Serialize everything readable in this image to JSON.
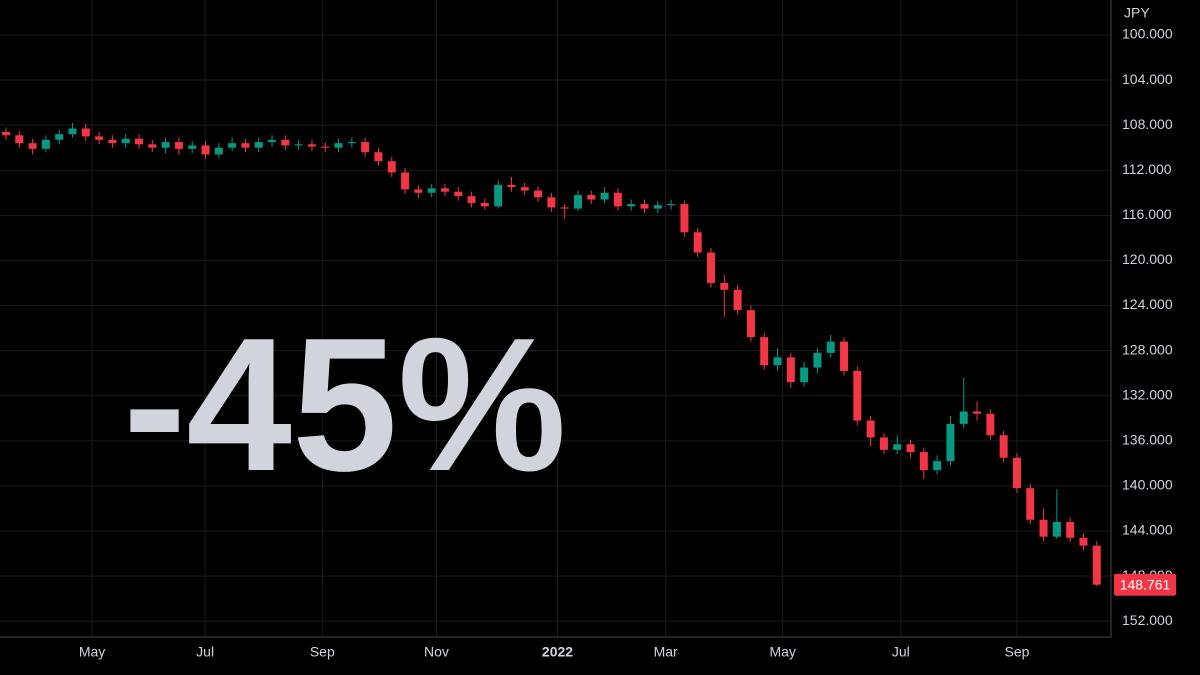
{
  "chart_data": {
    "type": "candlestick",
    "y_unit": "JPY",
    "annotation": "-45%",
    "annotation_color": "#f7525f",
    "rise_color": "#f23645",
    "fall_color": "#089981",
    "grid": true,
    "x": [
      0,
      1,
      2,
      3,
      4,
      5,
      6,
      7,
      8,
      9,
      10,
      11,
      12,
      13,
      14,
      15,
      16,
      17,
      18,
      19,
      20,
      21,
      22,
      23,
      24,
      25,
      26,
      27,
      28,
      29,
      30,
      31,
      32,
      33,
      34,
      35,
      36,
      37,
      38,
      39,
      40,
      41,
      42,
      43,
      44,
      45,
      46,
      47,
      48,
      49,
      50,
      51,
      52,
      53,
      54,
      55,
      56,
      57,
      58,
      59,
      60,
      61,
      62,
      63,
      64,
      65,
      66,
      67,
      68,
      69,
      70,
      71,
      72,
      73,
      74,
      75,
      76,
      77,
      78,
      79,
      80,
      81,
      82
    ],
    "open": [
      108.6,
      108.9,
      109.6,
      110.1,
      109.3,
      108.8,
      108.3,
      109.0,
      109.3,
      109.6,
      109.2,
      109.7,
      110.0,
      109.5,
      110.1,
      109.8,
      110.6,
      110.0,
      109.6,
      110.0,
      109.5,
      109.3,
      109.8,
      109.7,
      109.9,
      110.0,
      109.6,
      109.5,
      110.4,
      111.2,
      112.2,
      113.7,
      114.0,
      113.6,
      113.9,
      114.3,
      114.9,
      115.2,
      113.3,
      113.5,
      113.8,
      114.4,
      115.3,
      115.4,
      114.2,
      114.6,
      114.0,
      115.2,
      115.0,
      115.4,
      115.1,
      115.0,
      117.5,
      119.3,
      122.0,
      122.6,
      124.4,
      126.8,
      129.3,
      128.6,
      130.8,
      129.5,
      128.2,
      127.2,
      129.8,
      134.2,
      135.7,
      136.8,
      136.3,
      137.0,
      138.6,
      137.8,
      134.5,
      133.4,
      133.6,
      135.5,
      137.5,
      140.2,
      143.0,
      144.5,
      143.2,
      144.6,
      145.3
    ],
    "high": [
      109.3,
      110.0,
      110.6,
      110.4,
      109.7,
      109.1,
      109.4,
      109.7,
      110.0,
      110.0,
      110.1,
      110.4,
      110.5,
      110.6,
      110.5,
      111.0,
      110.9,
      110.3,
      110.4,
      110.4,
      109.9,
      110.2,
      110.2,
      110.3,
      110.4,
      110.4,
      110.0,
      110.8,
      111.6,
      112.6,
      114.1,
      114.5,
      114.4,
      114.3,
      114.7,
      115.3,
      115.5,
      115.4,
      113.9,
      114.2,
      114.8,
      115.7,
      116.3,
      115.6,
      115.0,
      114.9,
      115.6,
      115.6,
      115.8,
      115.8,
      115.5,
      117.9,
      119.7,
      122.4,
      125.0,
      124.8,
      127.2,
      129.7,
      129.8,
      131.3,
      131.2,
      130.0,
      128.6,
      130.2,
      134.6,
      136.5,
      137.2,
      137.2,
      137.5,
      139.4,
      139.0,
      138.2,
      134.9,
      134.2,
      135.9,
      137.9,
      140.6,
      143.4,
      144.9,
      144.7,
      145.0,
      145.7,
      148.9
    ],
    "low": [
      108.2,
      108.5,
      109.2,
      108.9,
      108.4,
      107.8,
      107.9,
      108.6,
      108.9,
      108.8,
      108.8,
      109.3,
      109.1,
      109.1,
      109.4,
      109.4,
      109.6,
      109.1,
      109.2,
      109.1,
      108.9,
      108.9,
      109.3,
      109.3,
      109.5,
      109.2,
      109.1,
      109.1,
      110.0,
      110.8,
      111.8,
      113.3,
      113.2,
      113.2,
      113.5,
      113.9,
      114.5,
      112.9,
      112.6,
      113.1,
      113.4,
      114.0,
      115.0,
      113.8,
      113.8,
      113.5,
      113.6,
      114.6,
      114.6,
      114.7,
      114.6,
      114.7,
      117.1,
      118.9,
      121.3,
      122.2,
      124.0,
      126.4,
      127.8,
      128.2,
      129.0,
      127.8,
      126.6,
      126.8,
      129.4,
      133.8,
      135.3,
      135.5,
      135.9,
      136.6,
      137.3,
      133.8,
      130.4,
      132.5,
      133.2,
      135.1,
      137.1,
      139.8,
      142.0,
      140.3,
      142.8,
      144.2,
      144.9
    ],
    "close": [
      108.9,
      109.6,
      110.1,
      109.3,
      108.8,
      108.3,
      109.0,
      109.3,
      109.6,
      109.2,
      109.7,
      110.0,
      109.5,
      110.1,
      109.8,
      110.6,
      110.0,
      109.6,
      110.0,
      109.5,
      109.3,
      109.8,
      109.7,
      109.9,
      110.0,
      109.6,
      109.5,
      110.4,
      111.2,
      112.2,
      113.7,
      114.0,
      113.6,
      113.9,
      114.3,
      114.9,
      115.2,
      113.3,
      113.5,
      113.8,
      114.4,
      115.3,
      115.4,
      114.2,
      114.6,
      114.0,
      115.2,
      115.0,
      115.4,
      115.1,
      115.0,
      117.5,
      119.3,
      122.0,
      122.6,
      124.4,
      126.8,
      129.3,
      128.6,
      130.8,
      129.5,
      128.2,
      127.2,
      129.8,
      134.2,
      135.7,
      136.8,
      136.3,
      137.0,
      138.6,
      137.8,
      134.5,
      133.4,
      133.6,
      135.5,
      137.5,
      140.2,
      143.0,
      144.5,
      143.2,
      144.6,
      145.3,
      148.761
    ],
    "last_price": {
      "value": 148.761,
      "label": "148.761"
    },
    "xlim": [
      -0.45,
      83.07
    ],
    "xticks": [
      {
        "value": 6.47,
        "label": "May"
      },
      {
        "value": 14.97,
        "label": "Jul"
      },
      {
        "value": 23.78,
        "label": "Sep"
      },
      {
        "value": 32.36,
        "label": "Nov"
      },
      {
        "value": 41.46,
        "label": "2022"
      },
      {
        "value": 49.59,
        "label": "Mar"
      },
      {
        "value": 58.39,
        "label": "May"
      },
      {
        "value": 67.27,
        "label": "Jul"
      },
      {
        "value": 76.0,
        "label": "Sep"
      }
    ],
    "ylim": [
      153.4,
      96.9
    ],
    "yticks": [
      {
        "value": 100,
        "label": "100.000"
      },
      {
        "value": 104,
        "label": "104.000"
      },
      {
        "value": 108,
        "label": "108.000"
      },
      {
        "value": 112,
        "label": "112.000"
      },
      {
        "value": 116,
        "label": "116.000"
      },
      {
        "value": 120,
        "label": "120.000"
      },
      {
        "value": 124,
        "label": "124.000"
      },
      {
        "value": 128,
        "label": "128.000"
      },
      {
        "value": 132,
        "label": "132.000"
      },
      {
        "value": 136,
        "label": "136.000"
      },
      {
        "value": 140,
        "label": "140.000"
      },
      {
        "value": 144,
        "label": "144.000"
      },
      {
        "value": 148,
        "label": "148.000"
      },
      {
        "value": 152,
        "label": "152.000"
      }
    ]
  }
}
